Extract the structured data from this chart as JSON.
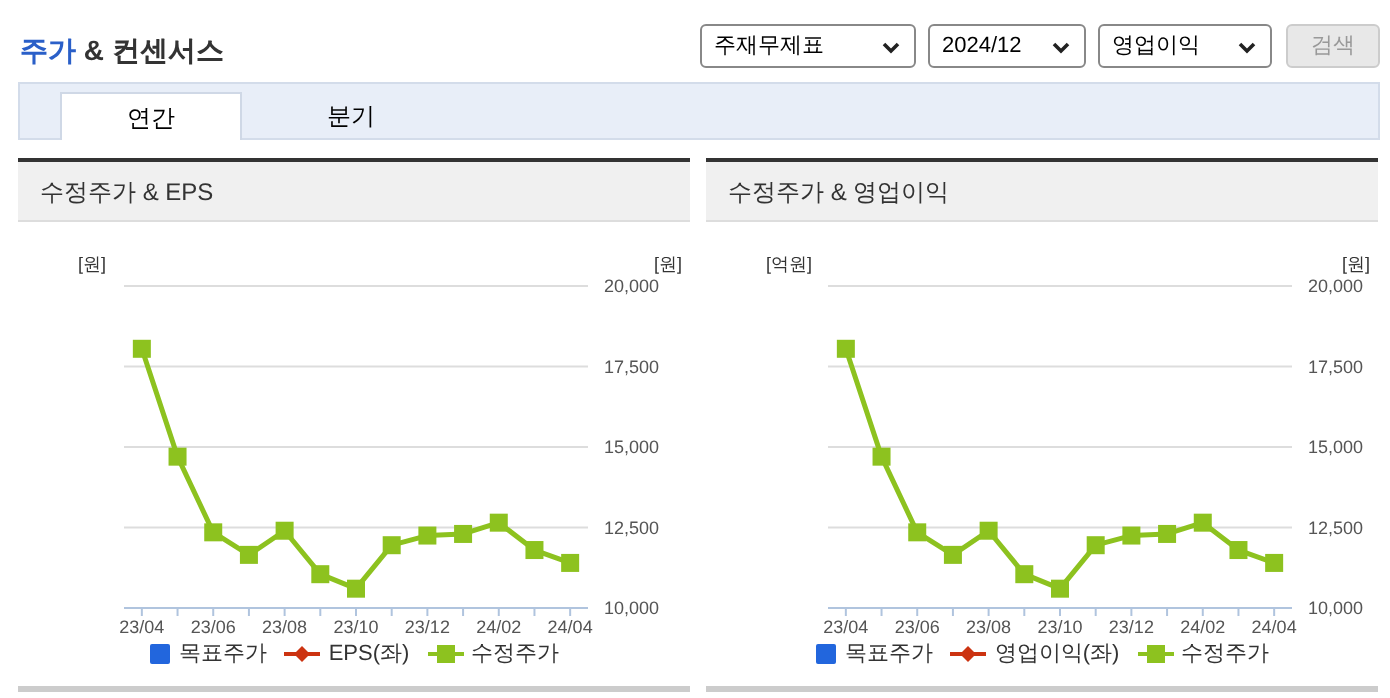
{
  "chart_data": [
    {
      "type": "other",
      "title": "주가 & 컨센서스",
      "annotations": [
        "주재무제표",
        "2024/12",
        "영업이익",
        "검색",
        "연간",
        "분기"
      ]
    },
    {
      "type": "line",
      "title": "수정주가 & EPS",
      "ylabel": "[원]",
      "y2label": "[원]",
      "categories": [
        "23/04",
        null,
        "23/06",
        null,
        "23/08",
        null,
        "23/10",
        null,
        "23/12",
        null,
        "24/02",
        null,
        "24/04"
      ],
      "y2lim": [
        10000,
        20000
      ],
      "y2ticks": [
        {
          "value": 10000,
          "label": "10,000"
        },
        {
          "value": 12500,
          "label": "12,500"
        },
        {
          "value": 15000,
          "label": "15,000"
        },
        {
          "value": 17500,
          "label": "17,500"
        },
        {
          "value": 20000,
          "label": "20,000"
        }
      ],
      "grid": "y",
      "legend": "bottom",
      "series": [
        {
          "name": "목표주가",
          "type": "bar",
          "color": "#2266dd",
          "values": [
            null,
            null,
            null,
            null,
            null,
            null,
            null,
            null,
            null,
            null,
            null,
            null,
            null
          ]
        },
        {
          "name": "EPS(좌)",
          "type": "line",
          "marker": "diamond",
          "color": "#cc3311",
          "values": [
            null,
            null,
            null,
            null,
            null,
            null,
            null,
            null,
            null,
            null,
            null,
            null,
            null
          ]
        },
        {
          "name": "수정주가",
          "type": "line",
          "marker": "square",
          "axis": "y2",
          "color": "#8dc21f",
          "values": [
            18050,
            14700,
            12350,
            11650,
            12400,
            11050,
            10600,
            11950,
            12250,
            12300,
            12650,
            11800,
            11400
          ]
        }
      ]
    },
    {
      "type": "line",
      "title": "수정주가 & 영업이익",
      "ylabel": "[억원]",
      "y2label": "[원]",
      "categories": [
        "23/04",
        null,
        "23/06",
        null,
        "23/08",
        null,
        "23/10",
        null,
        "23/12",
        null,
        "24/02",
        null,
        "24/04"
      ],
      "y2lim": [
        10000,
        20000
      ],
      "y2ticks": [
        {
          "value": 10000,
          "label": "10,000"
        },
        {
          "value": 12500,
          "label": "12,500"
        },
        {
          "value": 15000,
          "label": "15,000"
        },
        {
          "value": 17500,
          "label": "17,500"
        },
        {
          "value": 20000,
          "label": "20,000"
        }
      ],
      "grid": "y",
      "legend": "bottom",
      "series": [
        {
          "name": "목표주가",
          "type": "bar",
          "color": "#2266dd",
          "values": [
            null,
            null,
            null,
            null,
            null,
            null,
            null,
            null,
            null,
            null,
            null,
            null,
            null
          ]
        },
        {
          "name": "영업이익(좌)",
          "type": "line",
          "marker": "diamond",
          "color": "#cc3311",
          "values": [
            null,
            null,
            null,
            null,
            null,
            null,
            null,
            null,
            null,
            null,
            null,
            null,
            null
          ]
        },
        {
          "name": "수정주가",
          "type": "line",
          "marker": "square",
          "axis": "y2",
          "color": "#8dc21f",
          "values": [
            18050,
            14700,
            12350,
            11650,
            12400,
            11050,
            10600,
            11950,
            12250,
            12300,
            12650,
            11800,
            11400
          ]
        }
      ]
    }
  ]
}
